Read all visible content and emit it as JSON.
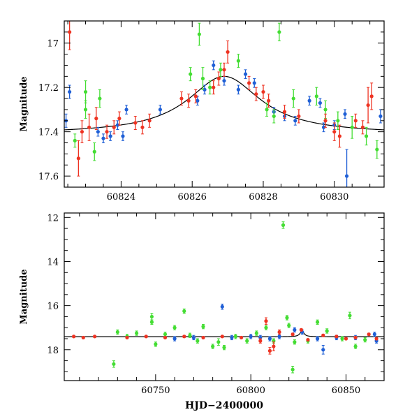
{
  "colors": {
    "blue": "#1f5fd6",
    "green": "#44dd33",
    "red": "#ee3322",
    "model": "#000000"
  },
  "chart_data": [
    {
      "type": "scatter",
      "panel": "top",
      "title": "",
      "xlabel": "",
      "ylabel": "Magnitude",
      "xlim": [
        60822.4,
        60831.4
      ],
      "ylim": [
        17.65,
        16.9
      ],
      "y_inverted": true,
      "xticks": [
        60824,
        60826,
        60828,
        60830
      ],
      "xtick_labels": [
        "60824",
        "60826",
        "60828",
        "60830"
      ],
      "yticks": [
        17,
        17.2,
        17.4,
        17.6
      ],
      "ytick_labels": [
        "17",
        "17.2",
        "17.4",
        "17.6"
      ],
      "grid": false,
      "model": {
        "name": "",
        "t0": 60826.9,
        "base": 17.41,
        "peak": 17.15,
        "width": 1.25
      },
      "series": [
        {
          "name": "",
          "color": "blue",
          "points": [
            [
              60822.45,
              17.35,
              0.03
            ],
            [
              60822.55,
              17.22,
              0.03
            ],
            [
              60823.35,
              17.4,
              0.02
            ],
            [
              60823.5,
              17.43,
              0.02
            ],
            [
              60823.7,
              17.42,
              0.02
            ],
            [
              60823.9,
              17.37,
              0.02
            ],
            [
              60824.05,
              17.42,
              0.02
            ],
            [
              60824.15,
              17.3,
              0.02
            ],
            [
              60825.1,
              17.3,
              0.02
            ],
            [
              60826.15,
              17.26,
              0.02
            ],
            [
              60826.35,
              17.21,
              0.02
            ],
            [
              60826.6,
              17.1,
              0.02
            ],
            [
              60826.9,
              17.17,
              0.02
            ],
            [
              60827.3,
              17.21,
              0.02
            ],
            [
              60827.5,
              17.14,
              0.02
            ],
            [
              60827.75,
              17.18,
              0.02
            ],
            [
              60828.3,
              17.31,
              0.02
            ],
            [
              60828.6,
              17.33,
              0.02
            ],
            [
              60828.9,
              17.35,
              0.02
            ],
            [
              60829.3,
              17.26,
              0.02
            ],
            [
              60829.6,
              17.27,
              0.02
            ],
            [
              60829.7,
              17.38,
              0.02
            ],
            [
              60830.0,
              17.37,
              0.02
            ],
            [
              60830.3,
              17.32,
              0.02
            ],
            [
              60830.35,
              17.6,
              0.12
            ],
            [
              60831.3,
              17.33,
              0.03
            ]
          ]
        },
        {
          "name": "",
          "color": "green",
          "points": [
            [
              60822.7,
              17.44,
              0.03
            ],
            [
              60823.0,
              17.22,
              0.05
            ],
            [
              60823.0,
              17.3,
              0.04
            ],
            [
              60823.25,
              17.49,
              0.04
            ],
            [
              60823.4,
              17.25,
              0.04
            ],
            [
              60825.95,
              17.14,
              0.03
            ],
            [
              60826.2,
              16.96,
              0.05
            ],
            [
              60826.3,
              17.16,
              0.05
            ],
            [
              60826.5,
              17.2,
              0.03
            ],
            [
              60826.8,
              17.12,
              0.03
            ],
            [
              60827.3,
              17.08,
              0.03
            ],
            [
              60828.1,
              17.3,
              0.03
            ],
            [
              60828.3,
              17.33,
              0.03
            ],
            [
              60828.45,
              16.95,
              0.04
            ],
            [
              60828.85,
              17.25,
              0.04
            ],
            [
              60829.5,
              17.24,
              0.04
            ],
            [
              60829.75,
              17.3,
              0.04
            ],
            [
              60830.1,
              17.35,
              0.04
            ],
            [
              60830.5,
              17.38,
              0.05
            ],
            [
              60830.9,
              17.42,
              0.04
            ],
            [
              60831.2,
              17.48,
              0.04
            ]
          ]
        },
        {
          "name": "",
          "color": "red",
          "points": [
            [
              60822.55,
              16.95,
              0.08
            ],
            [
              60822.8,
              17.52,
              0.08
            ],
            [
              60822.9,
              17.4,
              0.05
            ],
            [
              60823.1,
              17.38,
              0.06
            ],
            [
              60823.3,
              17.34,
              0.05
            ],
            [
              60823.6,
              17.4,
              0.03
            ],
            [
              60823.8,
              17.38,
              0.03
            ],
            [
              60823.95,
              17.34,
              0.03
            ],
            [
              60824.4,
              17.36,
              0.03
            ],
            [
              60824.6,
              17.38,
              0.03
            ],
            [
              60824.8,
              17.35,
              0.03
            ],
            [
              60825.7,
              17.25,
              0.03
            ],
            [
              60825.9,
              17.26,
              0.03
            ],
            [
              60826.1,
              17.24,
              0.03
            ],
            [
              60826.6,
              17.2,
              0.03
            ],
            [
              60826.75,
              17.16,
              0.03
            ],
            [
              60826.9,
              17.12,
              0.03
            ],
            [
              60827.0,
              17.04,
              0.05
            ],
            [
              60827.6,
              17.18,
              0.03
            ],
            [
              60827.8,
              17.23,
              0.03
            ],
            [
              60828.0,
              17.22,
              0.03
            ],
            [
              60828.15,
              17.26,
              0.03
            ],
            [
              60828.6,
              17.31,
              0.03
            ],
            [
              60829.0,
              17.33,
              0.03
            ],
            [
              60829.75,
              17.35,
              0.03
            ],
            [
              60830.0,
              17.4,
              0.04
            ],
            [
              60830.15,
              17.42,
              0.05
            ],
            [
              60830.6,
              17.35,
              0.03
            ],
            [
              60830.8,
              17.38,
              0.03
            ],
            [
              60830.95,
              17.28,
              0.08
            ],
            [
              60831.05,
              17.24,
              0.06
            ]
          ]
        }
      ]
    },
    {
      "type": "scatter",
      "panel": "bottom",
      "title": "",
      "xlabel": "HJD−2400000",
      "ylabel": "Magnitude",
      "xlim": [
        60702,
        60870
      ],
      "ylim": [
        19.4,
        11.8
      ],
      "y_inverted": true,
      "xticks": [
        60750,
        60800,
        60850
      ],
      "xtick_labels": [
        "60750",
        "60800",
        "60850"
      ],
      "yticks": [
        12,
        14,
        16,
        18
      ],
      "ytick_labels": [
        "12",
        "14",
        "16",
        "18"
      ],
      "grid": false,
      "model": {
        "name": "",
        "t0": 60826.9,
        "base": 17.41,
        "peak": 17.15,
        "width": 1.25
      },
      "series": [
        {
          "name": "",
          "color": "blue",
          "points": [
            [
              60760,
              17.5,
              0.1
            ],
            [
              60770,
              17.45,
              0.1
            ],
            [
              60785,
              16.05,
              0.12
            ],
            [
              60790,
              17.45,
              0.1
            ],
            [
              60800,
              17.4,
              0.1
            ],
            [
              60805,
              17.45,
              0.1
            ],
            [
              60810,
              17.5,
              0.1
            ],
            [
              60815,
              17.4,
              0.1
            ],
            [
              60823,
              17.1,
              0.1
            ],
            [
              60827,
              17.2,
              0.1
            ],
            [
              60835,
              17.5,
              0.1
            ],
            [
              60838,
              18.0,
              0.2
            ],
            [
              60845,
              17.45,
              0.1
            ],
            [
              60855,
              17.45,
              0.1
            ],
            [
              60865,
              17.3,
              0.1
            ],
            [
              60866,
              17.6,
              0.1
            ]
          ]
        },
        {
          "name": "",
          "color": "green",
          "points": [
            [
              60728,
              18.65,
              0.15
            ],
            [
              60730,
              17.2,
              0.1
            ],
            [
              60735,
              17.4,
              0.1
            ],
            [
              60740,
              17.25,
              0.1
            ],
            [
              60748,
              16.5,
              0.15
            ],
            [
              60748,
              16.75,
              0.1
            ],
            [
              60750,
              17.75,
              0.1
            ],
            [
              60755,
              17.3,
              0.1
            ],
            [
              60760,
              17.0,
              0.1
            ],
            [
              60765,
              16.25,
              0.1
            ],
            [
              60768,
              17.35,
              0.1
            ],
            [
              60772,
              17.6,
              0.1
            ],
            [
              60775,
              16.95,
              0.1
            ],
            [
              60780,
              17.85,
              0.1
            ],
            [
              60783,
              17.65,
              0.15
            ],
            [
              60786,
              17.9,
              0.1
            ],
            [
              60792,
              17.4,
              0.1
            ],
            [
              60798,
              17.6,
              0.1
            ],
            [
              60803,
              17.25,
              0.1
            ],
            [
              60808,
              17.0,
              0.1
            ],
            [
              60812,
              17.6,
              0.1
            ],
            [
              60817,
              12.35,
              0.15
            ],
            [
              60819,
              16.55,
              0.1
            ],
            [
              60820,
              16.9,
              0.1
            ],
            [
              60822,
              18.9,
              0.15
            ],
            [
              60823,
              17.65,
              0.1
            ],
            [
              60830,
              17.6,
              0.1
            ],
            [
              60835,
              16.75,
              0.1
            ],
            [
              60840,
              17.15,
              0.1
            ],
            [
              60848,
              17.5,
              0.1
            ],
            [
              60852,
              16.45,
              0.15
            ],
            [
              60855,
              17.85,
              0.1
            ],
            [
              60860,
              17.55,
              0.1
            ]
          ]
        },
        {
          "name": "",
          "color": "red",
          "points": [
            [
              60707,
              17.4,
              0.05
            ],
            [
              60712,
              17.45,
              0.05
            ],
            [
              60718,
              17.4,
              0.05
            ],
            [
              60735,
              17.45,
              0.05
            ],
            [
              60745,
              17.4,
              0.05
            ],
            [
              60755,
              17.45,
              0.05
            ],
            [
              60765,
              17.4,
              0.05
            ],
            [
              60775,
              17.45,
              0.05
            ],
            [
              60785,
              17.4,
              0.05
            ],
            [
              60795,
              17.45,
              0.05
            ],
            [
              60805,
              17.6,
              0.1
            ],
            [
              60808,
              16.7,
              0.15
            ],
            [
              60810,
              18.05,
              0.15
            ],
            [
              60812,
              17.85,
              0.2
            ],
            [
              60815,
              17.2,
              0.1
            ],
            [
              60822,
              17.3,
              0.05
            ],
            [
              60826.5,
              17.1,
              0.05
            ],
            [
              60830,
              17.55,
              0.05
            ],
            [
              60838,
              17.35,
              0.05
            ],
            [
              60845,
              17.4,
              0.05
            ],
            [
              60850,
              17.5,
              0.05
            ],
            [
              60855,
              17.45,
              0.05
            ],
            [
              60862,
              17.3,
              0.05
            ],
            [
              60866,
              17.5,
              0.05
            ]
          ]
        }
      ]
    }
  ]
}
